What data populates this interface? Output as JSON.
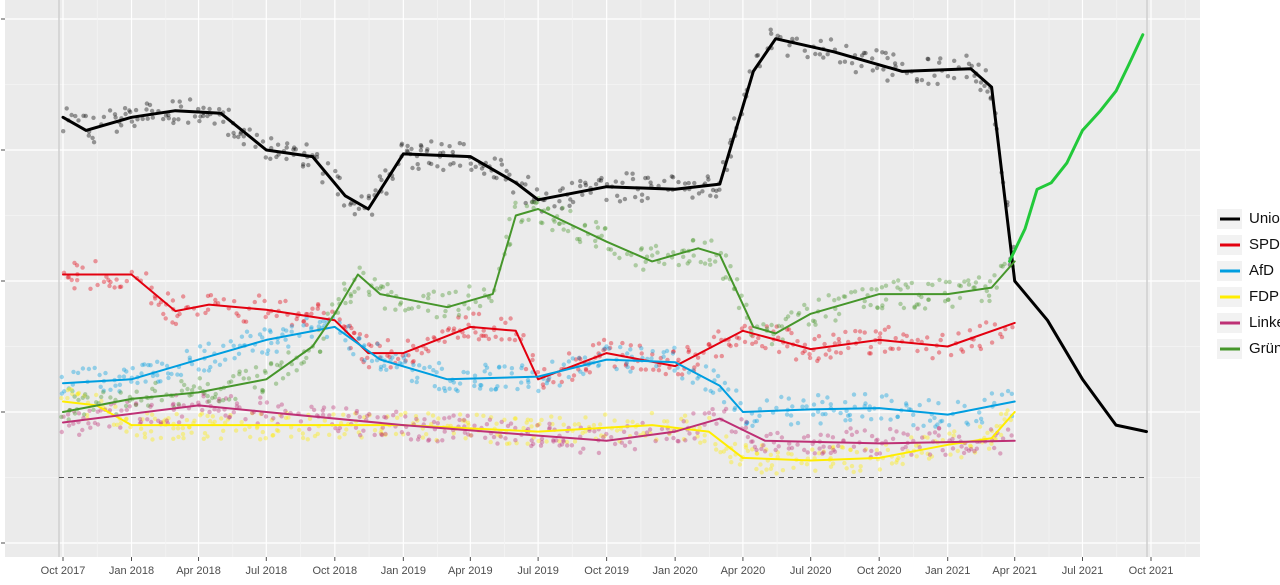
{
  "chart_data": {
    "type": "line",
    "title": "",
    "xlabel": "",
    "ylabel": "",
    "x_ticks": [
      "Oct 2017",
      "Jan 2018",
      "Apr 2018",
      "Jul 2018",
      "Oct 2018",
      "Jan 2019",
      "Apr 2019",
      "Jul 2019",
      "Oct 2019",
      "Jan 2020",
      "Apr 2020",
      "Jul 2020",
      "Oct 2020",
      "Jan 2021",
      "Apr 2021",
      "Jul 2021",
      "Oct 2021"
    ],
    "x_range": [
      "2017-08-15",
      "2021-12-10"
    ],
    "y_range": [
      0,
      42
    ],
    "y_ticks": [
      0,
      10,
      20,
      30,
      40
    ],
    "reference_line": {
      "y": 5,
      "style": "dashed"
    },
    "grid": true,
    "legend_position": "right",
    "series": [
      {
        "name": "Union",
        "color": "#000000",
        "x": [
          "2017-10-01",
          "2017-11-01",
          "2018-01-01",
          "2018-03-01",
          "2018-05-01",
          "2018-07-01",
          "2018-09-01",
          "2018-10-15",
          "2018-11-15",
          "2019-01-01",
          "2019-04-01",
          "2019-06-01",
          "2019-07-01",
          "2019-10-01",
          "2020-01-01",
          "2020-03-01",
          "2020-04-15",
          "2020-05-15",
          "2020-08-01",
          "2020-11-01",
          "2021-02-01",
          "2021-03-01",
          "2021-04-01",
          "2021-05-15",
          "2021-07-01",
          "2021-08-15",
          "2021-09-25"
        ],
        "values": [
          32.5,
          31.5,
          32.5,
          33.0,
          32.8,
          30.0,
          29.5,
          26.5,
          25.5,
          29.7,
          29.5,
          27.5,
          26.2,
          27.2,
          27.0,
          27.4,
          36.0,
          38.5,
          37.5,
          36.0,
          36.2,
          34.8,
          20.0,
          17.0,
          12.5,
          9.0,
          8.5
        ]
      },
      {
        "name": "SPD",
        "color": "#e3000f",
        "x": [
          "2017-10-01",
          "2018-01-01",
          "2018-03-01",
          "2018-04-15",
          "2018-07-01",
          "2018-10-01",
          "2018-11-15",
          "2019-01-01",
          "2019-04-01",
          "2019-06-01",
          "2019-07-01",
          "2019-10-01",
          "2020-01-01",
          "2020-04-01",
          "2020-07-01",
          "2020-10-01",
          "2021-01-01",
          "2021-04-01"
        ],
        "values": [
          20.5,
          20.5,
          17.7,
          18.2,
          17.8,
          17.0,
          14.5,
          14.5,
          16.5,
          16.2,
          12.5,
          14.5,
          13.5,
          16.2,
          14.8,
          15.5,
          15.0,
          16.8
        ]
      },
      {
        "name": "AfD",
        "color": "#009ee0",
        "x": [
          "2017-10-01",
          "2018-01-01",
          "2018-04-01",
          "2018-07-01",
          "2018-10-01",
          "2018-12-01",
          "2019-03-01",
          "2019-07-01",
          "2019-10-01",
          "2020-01-01",
          "2020-03-01",
          "2020-04-01",
          "2020-07-01",
          "2020-10-01",
          "2021-01-01",
          "2021-04-01"
        ],
        "values": [
          12.2,
          12.5,
          14.0,
          15.5,
          16.5,
          14.0,
          12.5,
          12.7,
          14.0,
          13.8,
          12.0,
          10.0,
          10.2,
          10.3,
          9.8,
          10.8
        ]
      },
      {
        "name": "FDP",
        "color": "#ffed00",
        "x": [
          "2017-10-01",
          "2017-11-15",
          "2018-01-01",
          "2018-07-01",
          "2019-01-01",
          "2019-07-01",
          "2019-12-01",
          "2020-02-15",
          "2020-04-01",
          "2020-07-01",
          "2020-10-01",
          "2021-01-01",
          "2021-03-01",
          "2021-04-01"
        ],
        "values": [
          10.8,
          10.5,
          9.0,
          9.0,
          9.0,
          8.5,
          9.0,
          8.5,
          6.5,
          6.3,
          6.5,
          7.5,
          8.0,
          10.0
        ]
      },
      {
        "name": "Linke",
        "color": "#be3075",
        "x": [
          "2017-10-01",
          "2018-04-01",
          "2018-07-01",
          "2019-01-01",
          "2019-07-01",
          "2019-10-01",
          "2020-01-01",
          "2020-03-01",
          "2020-05-01",
          "2020-10-01",
          "2021-01-01",
          "2021-04-01"
        ],
        "values": [
          9.2,
          10.5,
          10.0,
          9.0,
          8.2,
          7.8,
          8.5,
          9.5,
          7.8,
          7.6,
          7.7,
          7.8
        ]
      },
      {
        "name": "Grüne",
        "color": "#46962b",
        "x": [
          "2017-10-01",
          "2018-01-01",
          "2018-04-01",
          "2018-07-01",
          "2018-09-01",
          "2018-10-01",
          "2018-11-01",
          "2018-12-01",
          "2019-03-01",
          "2019-05-01",
          "2019-06-01",
          "2019-07-01",
          "2019-10-01",
          "2019-12-01",
          "2020-02-01",
          "2020-03-01",
          "2020-04-15",
          "2020-05-15",
          "2020-07-01",
          "2020-10-01",
          "2021-01-01",
          "2021-03-01",
          "2021-04-01"
        ],
        "values": [
          10.0,
          11.0,
          11.5,
          12.5,
          15.0,
          17.5,
          20.5,
          19.0,
          18.0,
          19.0,
          25.0,
          25.5,
          23.0,
          21.5,
          22.5,
          22.0,
          16.5,
          16.0,
          17.5,
          19.0,
          19.0,
          19.5,
          21.5
        ]
      },
      {
        "name": "",
        "color": "#22c93a",
        "x": [
          "2021-03-25",
          "2021-04-15",
          "2021-05-01",
          "2021-05-20",
          "2021-06-10",
          "2021-07-01",
          "2021-07-25",
          "2021-08-15",
          "2021-09-01",
          "2021-09-20"
        ],
        "values": [
          21.5,
          24.0,
          27.0,
          27.5,
          29.0,
          31.5,
          33.0,
          34.5,
          36.5,
          38.8
        ]
      }
    ]
  }
}
